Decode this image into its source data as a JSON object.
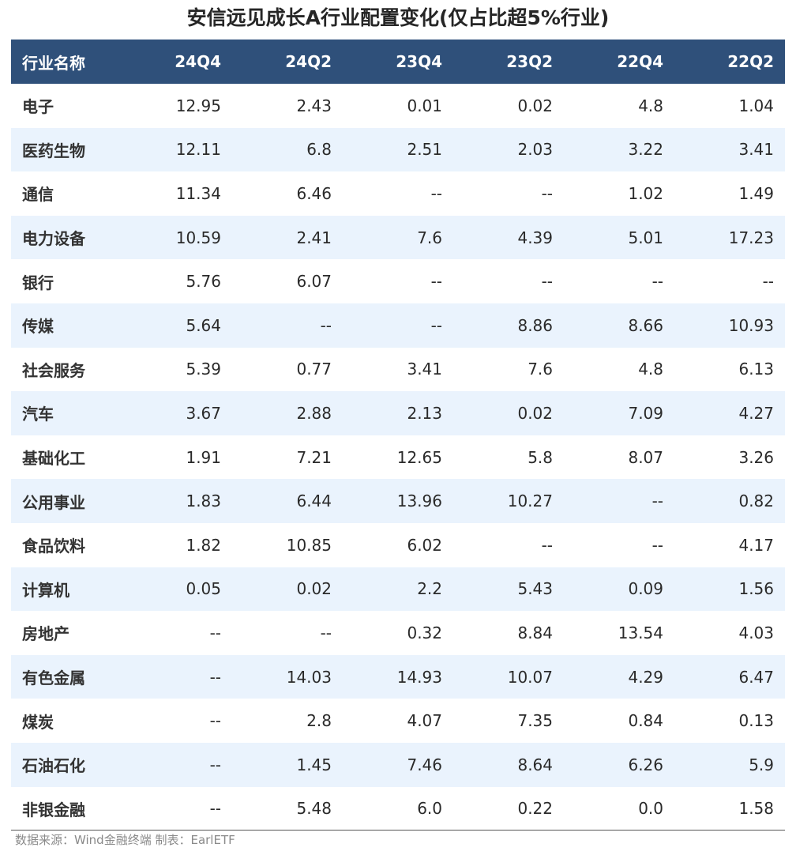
{
  "chart_data": {
    "type": "table",
    "title": "安信远见成长A行业配置变化(仅占比超5%行业)",
    "header_first": "行业名称",
    "columns": [
      "24Q4",
      "24Q2",
      "23Q4",
      "23Q2",
      "22Q4",
      "22Q2"
    ],
    "rows": [
      {
        "name": "电子",
        "values": [
          "12.95",
          "2.43",
          "0.01",
          "0.02",
          "4.8",
          "1.04"
        ]
      },
      {
        "name": "医药生物",
        "values": [
          "12.11",
          "6.8",
          "2.51",
          "2.03",
          "3.22",
          "3.41"
        ]
      },
      {
        "name": "通信",
        "values": [
          "11.34",
          "6.46",
          "--",
          "--",
          "1.02",
          "1.49"
        ]
      },
      {
        "name": "电力设备",
        "values": [
          "10.59",
          "2.41",
          "7.6",
          "4.39",
          "5.01",
          "17.23"
        ]
      },
      {
        "name": "银行",
        "values": [
          "5.76",
          "6.07",
          "--",
          "--",
          "--",
          "--"
        ]
      },
      {
        "name": "传媒",
        "values": [
          "5.64",
          "--",
          "--",
          "8.86",
          "8.66",
          "10.93"
        ]
      },
      {
        "name": "社会服务",
        "values": [
          "5.39",
          "0.77",
          "3.41",
          "7.6",
          "4.8",
          "6.13"
        ]
      },
      {
        "name": "汽车",
        "values": [
          "3.67",
          "2.88",
          "2.13",
          "0.02",
          "7.09",
          "4.27"
        ]
      },
      {
        "name": "基础化工",
        "values": [
          "1.91",
          "7.21",
          "12.65",
          "5.8",
          "8.07",
          "3.26"
        ]
      },
      {
        "name": "公用事业",
        "values": [
          "1.83",
          "6.44",
          "13.96",
          "10.27",
          "--",
          "0.82"
        ]
      },
      {
        "name": "食品饮料",
        "values": [
          "1.82",
          "10.85",
          "6.02",
          "--",
          "--",
          "4.17"
        ]
      },
      {
        "name": "计算机",
        "values": [
          "0.05",
          "0.02",
          "2.2",
          "5.43",
          "0.09",
          "1.56"
        ]
      },
      {
        "name": "房地产",
        "values": [
          "--",
          "--",
          "0.32",
          "8.84",
          "13.54",
          "4.03"
        ]
      },
      {
        "name": "有色金属",
        "values": [
          "--",
          "14.03",
          "14.93",
          "10.07",
          "4.29",
          "6.47"
        ]
      },
      {
        "name": "煤炭",
        "values": [
          "--",
          "2.8",
          "4.07",
          "7.35",
          "0.84",
          "0.13"
        ]
      },
      {
        "name": "石油石化",
        "values": [
          "--",
          "1.45",
          "7.46",
          "8.64",
          "6.26",
          "5.9"
        ]
      },
      {
        "name": "非银金融",
        "values": [
          "--",
          "5.48",
          "6.0",
          "0.22",
          "0.0",
          "1.58"
        ]
      }
    ],
    "source": "数据来源：Wind金融终端 制表：EarlETF",
    "colors": {
      "header_bg": "#2f507a",
      "header_text": "#ffffff",
      "alt_row": "#eaf3fd"
    }
  }
}
